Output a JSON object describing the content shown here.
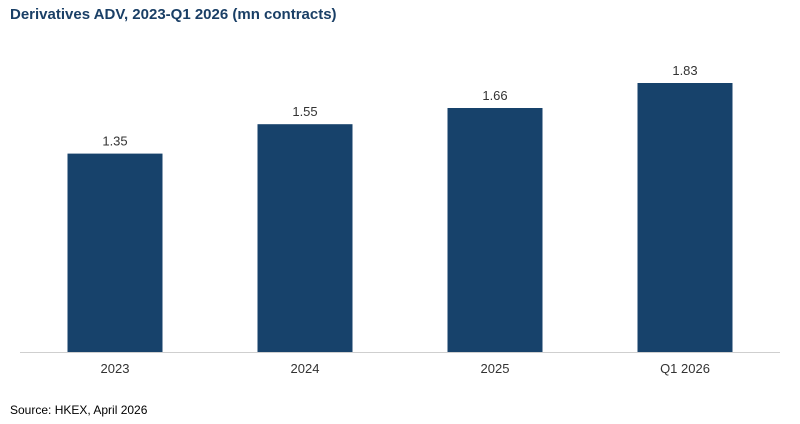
{
  "chart_data": {
    "type": "bar",
    "title": "Derivatives ADV, 2023-Q1 2026 (mn contracts)",
    "categories": [
      "2023",
      "2024",
      "2025",
      "Q1 2026"
    ],
    "values": [
      1.35,
      1.55,
      1.66,
      1.83
    ],
    "data_labels": [
      "1.35",
      "1.55",
      "1.66",
      "1.83"
    ],
    "xlabel": "",
    "ylabel": "",
    "ylim": [
      0,
      1.83
    ],
    "grid": false,
    "legend": "none",
    "bar_color": "#17426b",
    "axis_color": "#cfcfcf",
    "title_color": "#1a3f66"
  },
  "footer": {
    "source": "Source: HKEX, April 2026"
  }
}
